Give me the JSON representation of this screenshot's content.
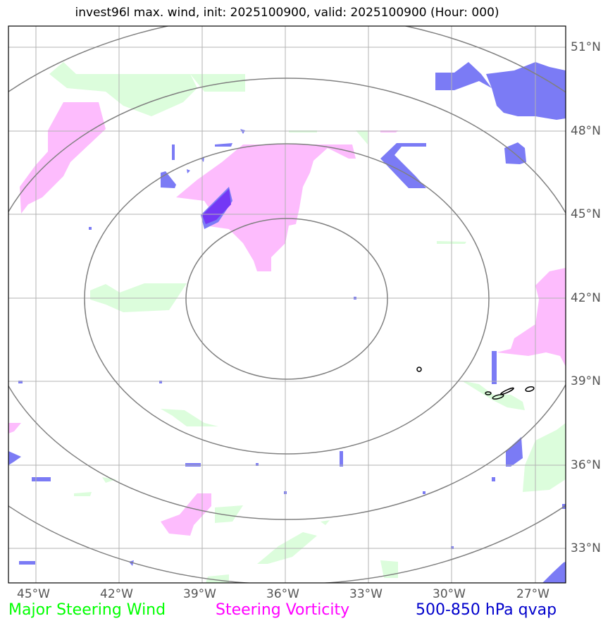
{
  "title": "invest96l max. wind, init: 2025100900, valid: 2025100900 (Hour: 000)",
  "lon_ticks": [
    "45°W",
    "42°W",
    "39°W",
    "36°W",
    "33°W",
    "30°W",
    "27°W"
  ],
  "lat_ticks": [
    "51°N",
    "48°N",
    "45°N",
    "42°N",
    "39°N",
    "36°N",
    "33°N"
  ],
  "legend": {
    "wind": "Major Steering Wind",
    "vorticity": "Steering Vorticity",
    "qvap": "500-850 hPa qvap"
  },
  "colors": {
    "wind_fill": "#dcfddc",
    "vorticity_fill": "#fdbcfd",
    "qvap_fill": "#7b7bf5",
    "qvap_dark": "#7438f5",
    "wind_text": "#00ff00",
    "vorticity_text": "#ff00ff",
    "qvap_text": "#0000cc",
    "grid": "#b3b3b3",
    "range_ring": "#808080"
  }
}
